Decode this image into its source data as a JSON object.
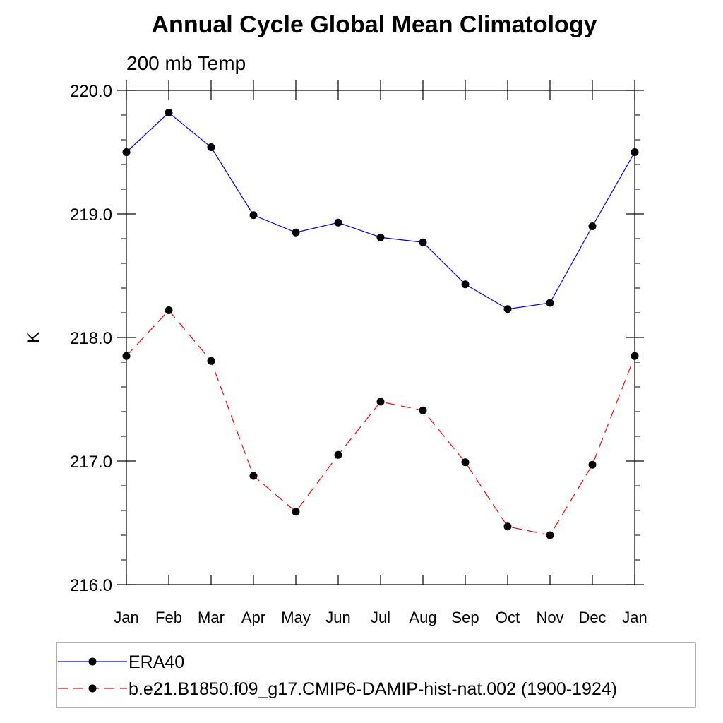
{
  "chart_data": {
    "type": "line",
    "title": "Annual Cycle Global Mean Climatology",
    "subtitle": "200 mb Temp",
    "xlabel": "",
    "ylabel": "K",
    "categories": [
      "Jan",
      "Feb",
      "Mar",
      "Apr",
      "May",
      "Jun",
      "Jul",
      "Aug",
      "Sep",
      "Oct",
      "Nov",
      "Dec",
      "Jan"
    ],
    "ylim": [
      216.0,
      220.0
    ],
    "yticks": [
      216.0,
      217.0,
      218.0,
      219.0,
      220.0
    ],
    "ytick_labels": [
      "216.0",
      "217.0",
      "218.0",
      "219.0",
      "220.0"
    ],
    "grid": false,
    "legend_position": "bottom",
    "series": [
      {
        "name": "ERA40",
        "color": "#0000ff",
        "dash": "solid",
        "values": [
          219.5,
          219.82,
          219.54,
          218.99,
          218.85,
          218.93,
          218.81,
          218.77,
          218.43,
          218.23,
          218.28,
          218.9,
          219.5
        ]
      },
      {
        "name": "b.e21.B1850.f09_g17.CMIP6-DAMIP-hist-nat.002 (1900-1924)",
        "color": "#ff0000",
        "dash": "dashed",
        "values": [
          217.85,
          218.22,
          217.81,
          216.88,
          216.59,
          217.05,
          217.48,
          217.41,
          216.99,
          216.47,
          216.4,
          216.97,
          217.85
        ]
      }
    ]
  }
}
